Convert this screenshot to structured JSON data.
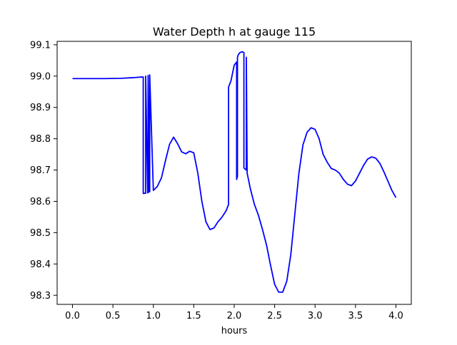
{
  "chart_data": {
    "type": "line",
    "title": "Water Depth h at gauge 115",
    "xlabel": "hours",
    "ylabel": "",
    "xlim": [
      -0.19,
      4.19
    ],
    "ylim": [
      98.271,
      99.111
    ],
    "grid": false,
    "legend": "none",
    "xticks": [
      0.0,
      0.5,
      1.0,
      1.5,
      2.0,
      2.5,
      3.0,
      3.5,
      4.0
    ],
    "xtick_labels": [
      "0.0",
      "0.5",
      "1.0",
      "1.5",
      "2.0",
      "2.5",
      "3.0",
      "3.5",
      "4.0"
    ],
    "yticks": [
      98.3,
      98.4,
      98.5,
      98.6,
      98.7,
      98.8,
      98.9,
      99.0,
      99.1
    ],
    "ytick_labels": [
      "98.3",
      "98.4",
      "98.5",
      "98.6",
      "98.7",
      "98.8",
      "98.9",
      "99.0",
      "99.1"
    ],
    "series": [
      {
        "color": "#0000ff",
        "x": [
          0.0,
          0.2,
          0.4,
          0.6,
          0.75,
          0.85,
          0.87,
          0.875,
          0.875,
          0.9,
          0.905,
          0.905,
          0.93,
          0.935,
          0.935,
          0.95,
          0.955,
          0.955,
          1.0,
          1.05,
          1.1,
          1.15,
          1.2,
          1.25,
          1.3,
          1.35,
          1.4,
          1.45,
          1.5,
          1.55,
          1.6,
          1.65,
          1.7,
          1.75,
          1.8,
          1.85,
          1.9,
          1.93,
          1.93,
          1.96,
          2.0,
          2.03,
          2.03,
          2.04,
          2.04,
          2.05,
          2.07,
          2.1,
          2.12,
          2.12,
          2.14,
          2.15,
          2.15,
          2.16,
          2.2,
          2.25,
          2.3,
          2.35,
          2.4,
          2.45,
          2.5,
          2.55,
          2.6,
          2.65,
          2.7,
          2.75,
          2.8,
          2.85,
          2.9,
          2.95,
          3.0,
          3.05,
          3.1,
          3.15,
          3.2,
          3.25,
          3.3,
          3.35,
          3.4,
          3.45,
          3.5,
          3.55,
          3.6,
          3.65,
          3.7,
          3.75,
          3.8,
          3.85,
          3.9,
          3.95,
          4.0
        ],
        "y": [
          98.992,
          98.992,
          98.992,
          98.993,
          98.995,
          98.997,
          98.997,
          98.997,
          98.625,
          98.626,
          98.626,
          99.0,
          98.627,
          98.628,
          99.002,
          98.63,
          98.631,
          99.004,
          98.635,
          98.648,
          98.675,
          98.73,
          98.782,
          98.805,
          98.784,
          98.758,
          98.752,
          98.76,
          98.755,
          98.69,
          98.6,
          98.535,
          98.51,
          98.515,
          98.535,
          98.55,
          98.57,
          98.59,
          98.965,
          98.985,
          99.035,
          99.045,
          98.67,
          98.68,
          99.06,
          99.068,
          99.075,
          99.078,
          99.075,
          98.707,
          98.702,
          98.7,
          99.06,
          98.69,
          98.64,
          98.59,
          98.555,
          98.51,
          98.46,
          98.395,
          98.335,
          98.31,
          98.31,
          98.345,
          98.43,
          98.56,
          98.69,
          98.78,
          98.82,
          98.835,
          98.83,
          98.8,
          98.75,
          98.725,
          98.705,
          98.7,
          98.69,
          98.67,
          98.655,
          98.65,
          98.665,
          98.69,
          98.715,
          98.735,
          98.742,
          98.738,
          98.722,
          98.695,
          98.665,
          98.635,
          98.612
        ]
      }
    ]
  }
}
